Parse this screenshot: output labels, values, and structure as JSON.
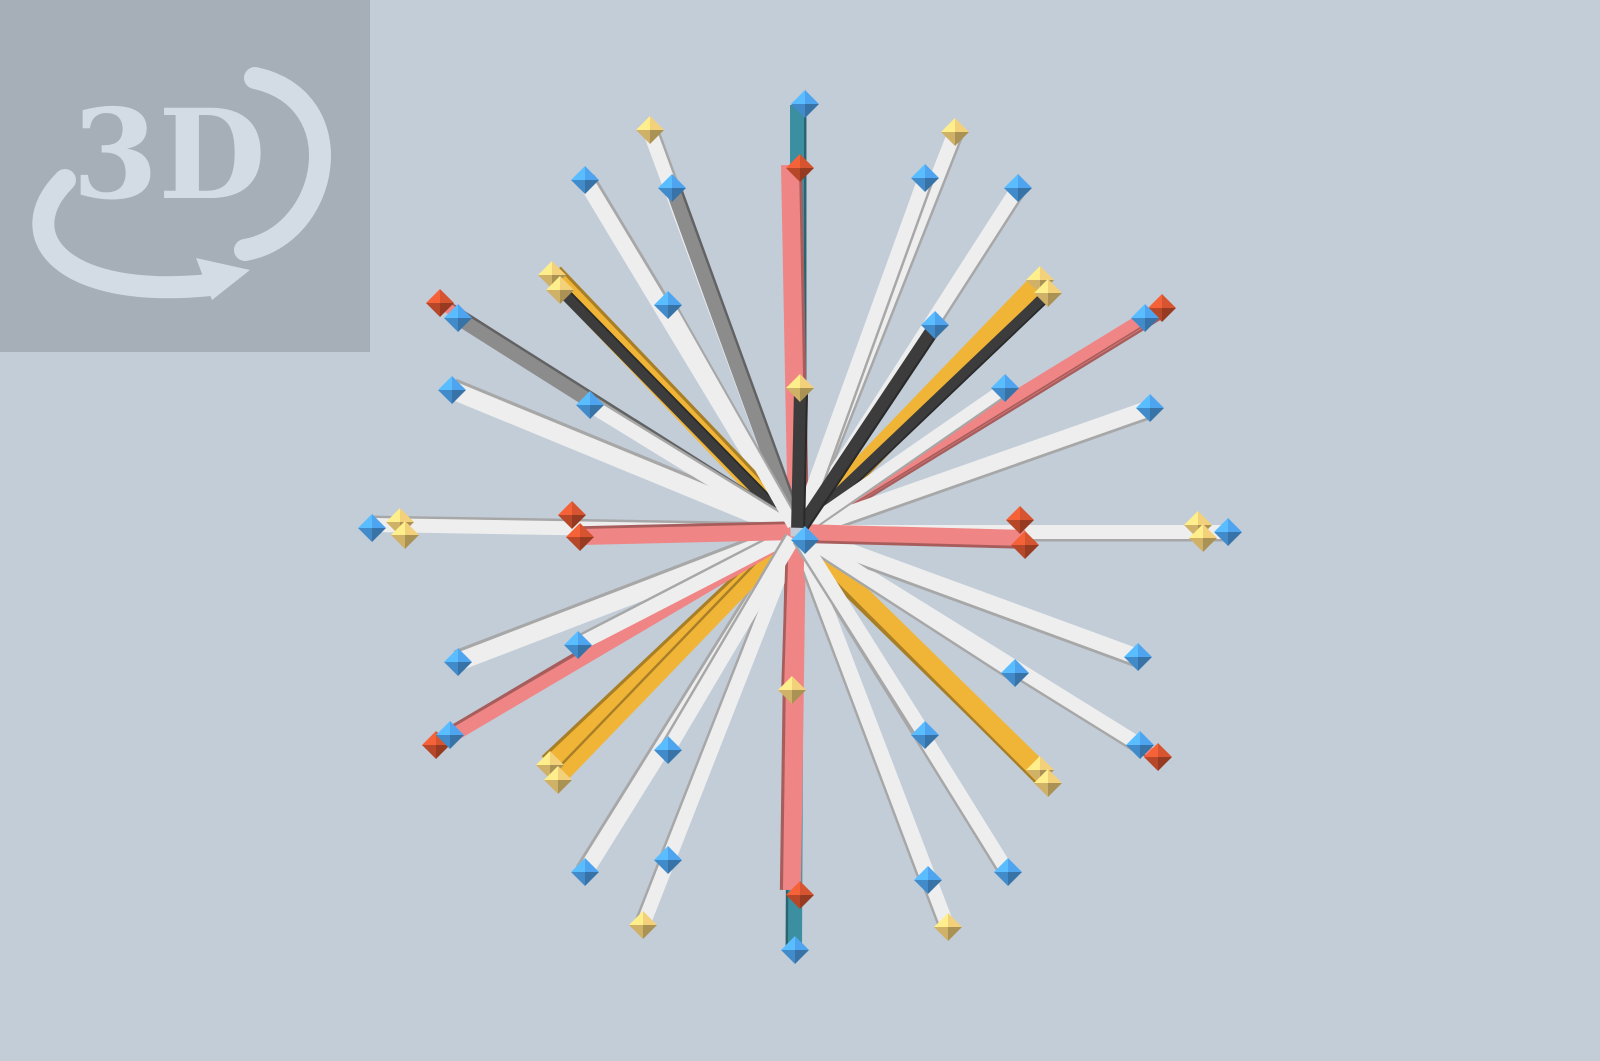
{
  "viewer": {
    "badge_label": "3D",
    "badge_icon": "rotate-3d-icon"
  },
  "colors": {
    "background": "#c2cdd8",
    "badge_background": "#a6aeb8",
    "badge_foreground": "#d3dbe5",
    "node_blue": "#4ea4ef",
    "node_yellow": "#f3d07a",
    "node_red": "#d65530",
    "rod_white": "#eeeeee",
    "rod_gray": "#8c8c8c",
    "rod_dark": "#3c3c3c",
    "rod_orange": "#f0b537",
    "rod_pink": "#f08585",
    "rod_teal": "#3b8fa0"
  }
}
